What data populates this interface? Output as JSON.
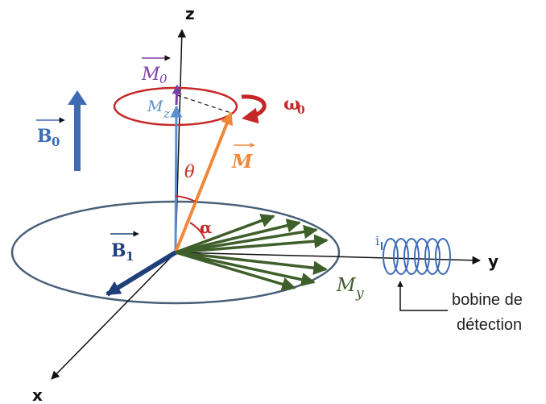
{
  "axes": {
    "z": "z",
    "y": "y",
    "x": "x"
  },
  "labels": {
    "M0": "M",
    "M0_sub": "0",
    "Mz": "M",
    "Mz_sub": "z",
    "omega0": "ω",
    "omega0_sub": "0",
    "B0": "B",
    "B0_sub": "0",
    "theta": "θ",
    "M": "M",
    "alpha": "α",
    "B1": "B",
    "B1_sub": "1",
    "My": "M",
    "My_sub": "y",
    "coil_i": "i",
    "coil_caption_line1": "bobine de",
    "coil_caption_line2": "détection"
  },
  "colors": {
    "axis": "#111111",
    "B0": "#3D6CB5",
    "B1": "#1F3F7A",
    "M": "#F0883A",
    "M0": "#7A3FA6",
    "Mz": "#5B8FD0",
    "precession": "#C62828",
    "My": "#3E5E2A",
    "coil": "#3D6CB5",
    "ellipse": "#4A5F7A",
    "alpha": "#C62828"
  }
}
